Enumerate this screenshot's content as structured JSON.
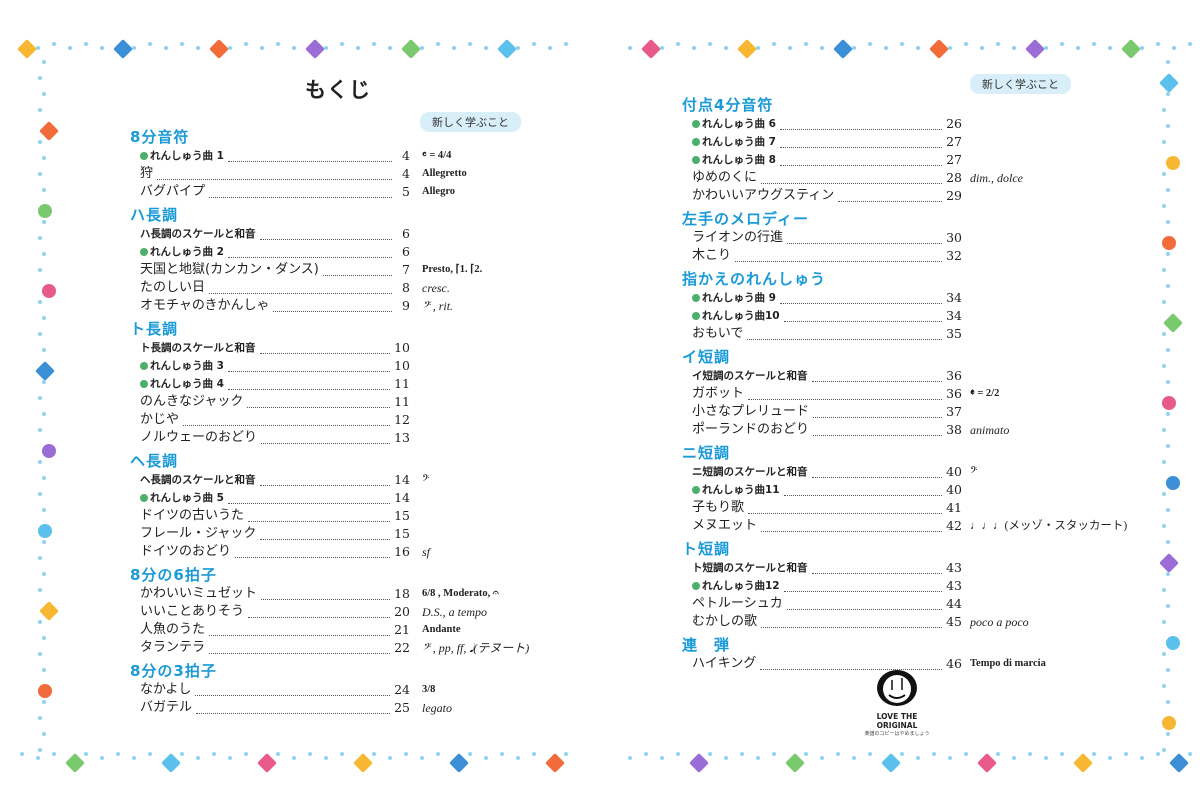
{
  "left": {
    "title": "もくじ",
    "badge": "新しく学ぶこと",
    "sections": [
      {
        "title": "8分音符",
        "items": [
          {
            "label": "れんしゅう曲 1",
            "page": "4",
            "type": "practice",
            "note": "𝄴 = 4/4",
            "note_style": "b"
          },
          {
            "label": "狩",
            "page": "4",
            "type": "normal",
            "note": "Allegretto",
            "note_style": "b"
          },
          {
            "label": "バグパイプ",
            "page": "5",
            "type": "normal",
            "note": "Allegro",
            "note_style": "b"
          }
        ]
      },
      {
        "title": "ハ長調",
        "items": [
          {
            "label": "ハ長調のスケールと和音",
            "page": "6",
            "type": "scale"
          },
          {
            "label": "れんしゅう曲 2",
            "page": "6",
            "type": "practice"
          },
          {
            "label": "天国と地獄(カンカン・ダンス)",
            "page": "7",
            "type": "normal",
            "note": "Presto, ⌈1.    ⌈2.",
            "note_style": "b"
          },
          {
            "label": "たのしい日",
            "page": "8",
            "type": "normal",
            "note": "cresc.",
            "note_style": "i"
          },
          {
            "label": "オモチャのきかんしゃ",
            "page": "9",
            "type": "normal",
            "note": "𝄢 , rit.",
            "note_style": "i"
          }
        ]
      },
      {
        "title": "ト長調",
        "items": [
          {
            "label": "ト長調のスケールと和音",
            "page": "10",
            "type": "scale"
          },
          {
            "label": "れんしゅう曲 3",
            "page": "10",
            "type": "practice"
          },
          {
            "label": "れんしゅう曲 4",
            "page": "11",
            "type": "practice"
          },
          {
            "label": "のんきなジャック",
            "page": "11",
            "type": "normal"
          },
          {
            "label": "かじや",
            "page": "12",
            "type": "normal"
          },
          {
            "label": "ノルウェーのおどり",
            "page": "13",
            "type": "normal"
          }
        ]
      },
      {
        "title": "ヘ長調",
        "items": [
          {
            "label": "ヘ長調のスケールと和音",
            "page": "14",
            "type": "scale",
            "note": "𝄢",
            "note_style": ""
          },
          {
            "label": "れんしゅう曲 5",
            "page": "14",
            "type": "practice"
          },
          {
            "label": "ドイツの古いうた",
            "page": "15",
            "type": "normal"
          },
          {
            "label": "フレール・ジャック",
            "page": "15",
            "type": "normal"
          },
          {
            "label": "ドイツのおどり",
            "page": "16",
            "type": "normal",
            "note": "sf",
            "note_style": "i"
          }
        ]
      },
      {
        "title": "8分の6拍子",
        "items": [
          {
            "label": "かわいいミュゼット",
            "page": "18",
            "type": "normal",
            "note": "6/8 , Moderato, 𝄐",
            "note_style": "b"
          },
          {
            "label": "いいことありそう",
            "page": "20",
            "type": "normal",
            "note": "D.S., a tempo",
            "note_style": "i"
          },
          {
            "label": "人魚のうた",
            "page": "21",
            "type": "normal",
            "note": "Andante",
            "note_style": "b"
          },
          {
            "label": "タランテラ",
            "page": "22",
            "type": "normal",
            "note": "𝄢 , pp, ff, 𝅘𝅥(テヌート)",
            "note_style": "i"
          }
        ]
      },
      {
        "title": "8分の3拍子",
        "items": [
          {
            "label": "なかよし",
            "page": "24",
            "type": "normal",
            "note": "3/8",
            "note_style": "b"
          },
          {
            "label": "バガテル",
            "page": "25",
            "type": "normal",
            "note": "legato",
            "note_style": "i"
          }
        ]
      }
    ]
  },
  "right": {
    "badge": "新しく学ぶこと",
    "sections": [
      {
        "title": "付点4分音符",
        "items": [
          {
            "label": "れんしゅう曲 6",
            "page": "26",
            "type": "practice"
          },
          {
            "label": "れんしゅう曲 7",
            "page": "27",
            "type": "practice"
          },
          {
            "label": "れんしゅう曲 8",
            "page": "27",
            "type": "practice"
          },
          {
            "label": "ゆめのくに",
            "page": "28",
            "type": "normal",
            "note": "dim., dolce",
            "note_style": "i"
          },
          {
            "label": "かわいいアウグスティン",
            "page": "29",
            "type": "normal"
          }
        ]
      },
      {
        "title": "左手のメロディー",
        "items": [
          {
            "label": "ライオンの行進",
            "page": "30",
            "type": "normal"
          },
          {
            "label": "木こり",
            "page": "32",
            "type": "normal"
          }
        ]
      },
      {
        "title": "指かえのれんしゅう",
        "items": [
          {
            "label": "れんしゅう曲 9",
            "page": "34",
            "type": "practice"
          },
          {
            "label": "れんしゅう曲10",
            "page": "34",
            "type": "practice"
          },
          {
            "label": "おもいで",
            "page": "35",
            "type": "normal"
          }
        ]
      },
      {
        "title": "イ短調",
        "items": [
          {
            "label": "イ短調のスケールと和音",
            "page": "36",
            "type": "scale"
          },
          {
            "label": "ガボット",
            "page": "36",
            "type": "normal",
            "note": "𝄵 = 2/2",
            "note_style": "b"
          },
          {
            "label": "小さなプレリュード",
            "page": "37",
            "type": "normal"
          },
          {
            "label": "ポーランドのおどり",
            "page": "38",
            "type": "normal",
            "note": "animato",
            "note_style": "i"
          }
        ]
      },
      {
        "title": "ニ短調",
        "items": [
          {
            "label": "ニ短調のスケールと和音",
            "page": "40",
            "type": "scale",
            "note": "𝄢",
            "note_style": ""
          },
          {
            "label": "れんしゅう曲11",
            "page": "40",
            "type": "practice"
          },
          {
            "label": "子もり歌",
            "page": "41",
            "type": "normal"
          },
          {
            "label": "メヌエット",
            "page": "42",
            "type": "normal",
            "note": "♩♩♩(メッゾ・スタッカート)",
            "note_style": ""
          }
        ]
      },
      {
        "title": "ト短調",
        "items": [
          {
            "label": "ト短調のスケールと和音",
            "page": "43",
            "type": "scale"
          },
          {
            "label": "れんしゅう曲12",
            "page": "43",
            "type": "practice"
          },
          {
            "label": "ペトルーシュカ",
            "page": "44",
            "type": "normal"
          },
          {
            "label": "むかしの歌",
            "page": "45",
            "type": "normal",
            "note": "poco a poco",
            "note_style": "i"
          }
        ]
      },
      {
        "title": "連　弾",
        "items": [
          {
            "label": "ハイキング",
            "page": "46",
            "type": "normal",
            "note": "Tempo di marcia",
            "note_style": "b"
          }
        ]
      }
    ],
    "logo": {
      "title": "LOVE THE ORIGINAL",
      "subtitle": "楽譜のコピーはやめましょう"
    }
  },
  "colors": {
    "heading": "#1a9ad6",
    "practice_dot": "#4caf6a",
    "badge": "#d8eef9"
  }
}
